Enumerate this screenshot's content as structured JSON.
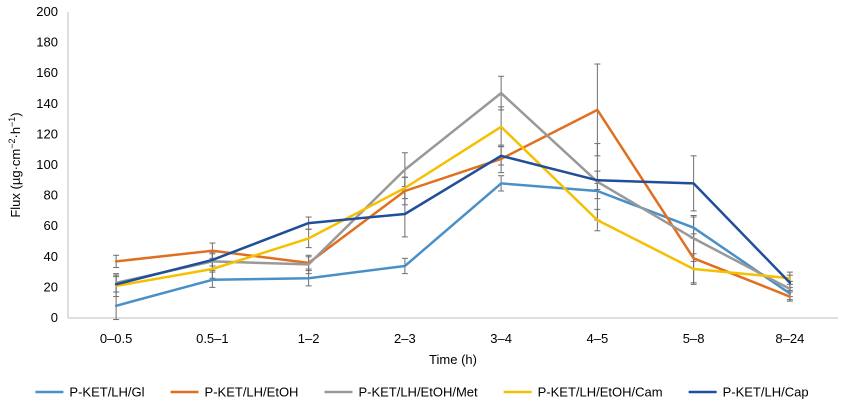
{
  "chart_data": {
    "type": "line",
    "title": "",
    "xlabel": "Time (h)",
    "ylabel_main": "Flux (µg·cm",
    "ylabel_exp1": "−2",
    "ylabel_mid": "·h",
    "ylabel_exp2": "−1",
    "ylabel_end": ")",
    "ylim": [
      0,
      200
    ],
    "yticks": [
      0,
      20,
      40,
      60,
      80,
      100,
      120,
      140,
      160,
      180,
      200
    ],
    "grid": false,
    "legend_position": "bottom",
    "categories": [
      "0–0.5",
      "0.5–1",
      "1–2",
      "2–3",
      "3–4",
      "4–5",
      "5–8",
      "8–24"
    ],
    "series": [
      {
        "name": "P-KET/LH/Gl",
        "color": "#4a90c8",
        "values": [
          8,
          25,
          26,
          34,
          88,
          83,
          59,
          16
        ],
        "errors": [
          9,
          5,
          5,
          5,
          5,
          5,
          7,
          4
        ]
      },
      {
        "name": "P-KET/LH/EtOH",
        "color": "#e07020",
        "values": [
          37,
          44,
          36,
          83,
          104,
          136,
          39,
          14
        ],
        "errors": [
          4,
          5,
          4,
          9,
          9,
          30,
          16,
          3
        ]
      },
      {
        "name": "P-KET/LH/EtOH/Met",
        "color": "#999999",
        "values": [
          23,
          37,
          35,
          97,
          147,
          89,
          52,
          19
        ],
        "errors": [
          6,
          6,
          6,
          11,
          11,
          25,
          15,
          5
        ]
      },
      {
        "name": "P-KET/LH/EtOH/Cam",
        "color": "#f5c000",
        "values": [
          21,
          32,
          52,
          85,
          125,
          64,
          32,
          26
        ],
        "errors": [
          7,
          6,
          6,
          7,
          13,
          7,
          10,
          4
        ]
      },
      {
        "name": "P-KET/LH/Cap",
        "color": "#204f9a",
        "values": [
          22,
          38,
          62,
          68,
          106,
          90,
          88,
          23
        ],
        "errors": [
          5,
          4,
          4,
          15,
          6,
          6,
          18,
          5
        ]
      }
    ]
  }
}
